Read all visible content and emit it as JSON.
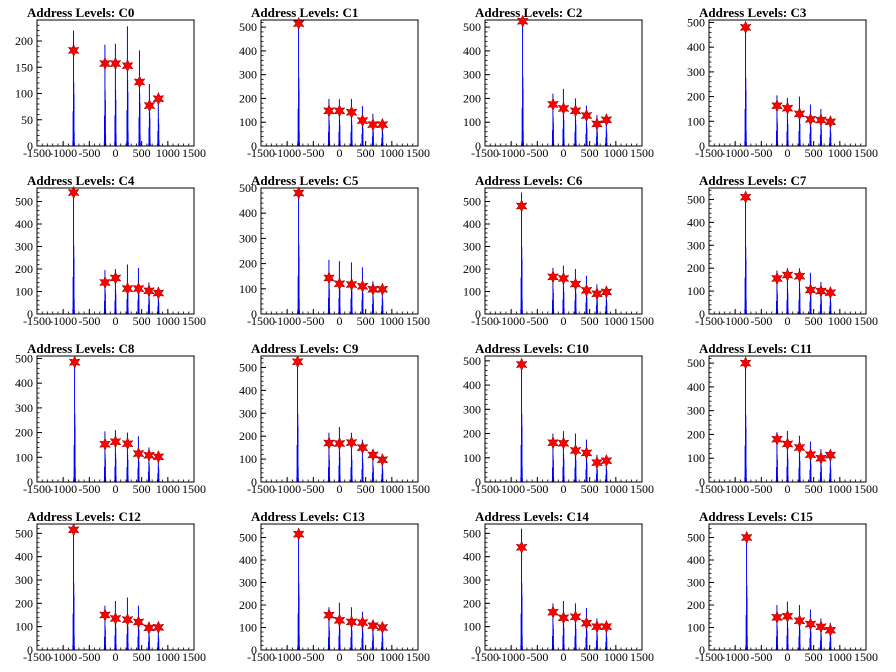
{
  "chart_data": [
    {
      "type": "histogram",
      "title": "Address Levels: C0",
      "xlim": [
        -1500,
        1500
      ],
      "ylim": [
        0,
        240
      ],
      "xticks": [
        -1500,
        -1000,
        -500,
        0,
        500,
        1000,
        1500
      ],
      "yticks": [
        0,
        50,
        100,
        150,
        200
      ],
      "peaks": [
        {
          "x": -800,
          "y": 220,
          "marker": 182
        },
        {
          "x": -200,
          "y": 193,
          "marker": 157
        },
        {
          "x": 0,
          "y": 195,
          "marker": 157
        },
        {
          "x": 230,
          "y": 228,
          "marker": 153
        },
        {
          "x": 460,
          "y": 182,
          "marker": 122
        },
        {
          "x": 650,
          "y": 118,
          "marker": 77
        },
        {
          "x": 820,
          "y": 95,
          "marker": 90
        }
      ]
    },
    {
      "type": "histogram",
      "title": "Address Levels: C1",
      "xlim": [
        -1500,
        1500
      ],
      "ylim": [
        0,
        530
      ],
      "xticks": [
        -1500,
        -1000,
        -500,
        0,
        500,
        1000,
        1500
      ],
      "yticks": [
        0,
        100,
        200,
        300,
        400,
        500
      ],
      "peaks": [
        {
          "x": -780,
          "y": 520,
          "marker": 515
        },
        {
          "x": -200,
          "y": 198,
          "marker": 148
        },
        {
          "x": 0,
          "y": 197,
          "marker": 148
        },
        {
          "x": 230,
          "y": 198,
          "marker": 142
        },
        {
          "x": 440,
          "y": 168,
          "marker": 107
        },
        {
          "x": 640,
          "y": 135,
          "marker": 90
        },
        {
          "x": 820,
          "y": 112,
          "marker": 90
        }
      ]
    },
    {
      "type": "histogram",
      "title": "Address Levels: C2",
      "xlim": [
        -1500,
        1500
      ],
      "ylim": [
        0,
        530
      ],
      "xticks": [
        -1500,
        -1000,
        -500,
        0,
        500,
        1000,
        1500
      ],
      "yticks": [
        0,
        100,
        200,
        300,
        400,
        500
      ],
      "peaks": [
        {
          "x": -780,
          "y": 530,
          "marker": 525
        },
        {
          "x": -200,
          "y": 220,
          "marker": 175
        },
        {
          "x": 0,
          "y": 240,
          "marker": 158
        },
        {
          "x": 230,
          "y": 200,
          "marker": 148
        },
        {
          "x": 440,
          "y": 170,
          "marker": 128
        },
        {
          "x": 640,
          "y": 130,
          "marker": 93
        },
        {
          "x": 820,
          "y": 122,
          "marker": 110
        }
      ]
    },
    {
      "type": "histogram",
      "title": "Address Levels: C3",
      "xlim": [
        -1500,
        1500
      ],
      "ylim": [
        0,
        510
      ],
      "xticks": [
        -1500,
        -1000,
        -500,
        0,
        500,
        1000,
        1500
      ],
      "yticks": [
        0,
        100,
        200,
        300,
        400,
        500
      ],
      "peaks": [
        {
          "x": -800,
          "y": 500,
          "marker": 480
        },
        {
          "x": -200,
          "y": 205,
          "marker": 163
        },
        {
          "x": 0,
          "y": 195,
          "marker": 153
        },
        {
          "x": 230,
          "y": 200,
          "marker": 130
        },
        {
          "x": 440,
          "y": 168,
          "marker": 108
        },
        {
          "x": 640,
          "y": 150,
          "marker": 105
        },
        {
          "x": 820,
          "y": 118,
          "marker": 98
        }
      ]
    },
    {
      "type": "histogram",
      "title": "Address Levels: C4",
      "xlim": [
        -1500,
        1500
      ],
      "ylim": [
        0,
        560
      ],
      "xticks": [
        -1500,
        -1000,
        -500,
        0,
        500,
        1000,
        1500
      ],
      "yticks": [
        0,
        100,
        200,
        300,
        400,
        500
      ],
      "peaks": [
        {
          "x": -800,
          "y": 550,
          "marker": 540
        },
        {
          "x": -200,
          "y": 195,
          "marker": 140
        },
        {
          "x": 0,
          "y": 200,
          "marker": 160
        },
        {
          "x": 230,
          "y": 220,
          "marker": 113
        },
        {
          "x": 440,
          "y": 205,
          "marker": 113
        },
        {
          "x": 640,
          "y": 140,
          "marker": 103
        },
        {
          "x": 820,
          "y": 112,
          "marker": 93
        }
      ]
    },
    {
      "type": "histogram",
      "title": "Address Levels: C5",
      "xlim": [
        -1500,
        1500
      ],
      "ylim": [
        0,
        500
      ],
      "xticks": [
        -1500,
        -1000,
        -500,
        0,
        500,
        1000,
        1500
      ],
      "yticks": [
        0,
        100,
        200,
        300,
        400,
        500
      ],
      "peaks": [
        {
          "x": -780,
          "y": 500,
          "marker": 480
        },
        {
          "x": -200,
          "y": 215,
          "marker": 143
        },
        {
          "x": 0,
          "y": 210,
          "marker": 120
        },
        {
          "x": 230,
          "y": 205,
          "marker": 117
        },
        {
          "x": 440,
          "y": 185,
          "marker": 110
        },
        {
          "x": 640,
          "y": 130,
          "marker": 98
        },
        {
          "x": 820,
          "y": 112,
          "marker": 98
        }
      ]
    },
    {
      "type": "histogram",
      "title": "Address Levels: C6",
      "xlim": [
        -1500,
        1500
      ],
      "ylim": [
        0,
        560
      ],
      "xticks": [
        -1500,
        -1000,
        -500,
        0,
        500,
        1000,
        1500
      ],
      "yticks": [
        0,
        100,
        200,
        300,
        400,
        500
      ],
      "peaks": [
        {
          "x": -800,
          "y": 540,
          "marker": 480
        },
        {
          "x": -200,
          "y": 205,
          "marker": 165
        },
        {
          "x": 0,
          "y": 215,
          "marker": 158
        },
        {
          "x": 230,
          "y": 200,
          "marker": 133
        },
        {
          "x": 440,
          "y": 170,
          "marker": 105
        },
        {
          "x": 640,
          "y": 132,
          "marker": 90
        },
        {
          "x": 820,
          "y": 115,
          "marker": 98
        }
      ]
    },
    {
      "type": "histogram",
      "title": "Address Levels: C7",
      "xlim": [
        -1500,
        1500
      ],
      "ylim": [
        0,
        550
      ],
      "xticks": [
        -1500,
        -1000,
        -500,
        0,
        500,
        1000,
        1500
      ],
      "yticks": [
        0,
        100,
        200,
        300,
        400,
        500
      ],
      "peaks": [
        {
          "x": -800,
          "y": 530,
          "marker": 510
        },
        {
          "x": -200,
          "y": 190,
          "marker": 155
        },
        {
          "x": 0,
          "y": 200,
          "marker": 170
        },
        {
          "x": 230,
          "y": 200,
          "marker": 165
        },
        {
          "x": 440,
          "y": 180,
          "marker": 105
        },
        {
          "x": 640,
          "y": 140,
          "marker": 100
        },
        {
          "x": 820,
          "y": 112,
          "marker": 93
        }
      ]
    },
    {
      "type": "histogram",
      "title": "Address Levels: C8",
      "xlim": [
        -1500,
        1500
      ],
      "ylim": [
        0,
        510
      ],
      "xticks": [
        -1500,
        -1000,
        -500,
        0,
        500,
        1000,
        1500
      ],
      "yticks": [
        0,
        100,
        200,
        300,
        400,
        500
      ],
      "peaks": [
        {
          "x": -780,
          "y": 500,
          "marker": 485
        },
        {
          "x": -200,
          "y": 205,
          "marker": 153
        },
        {
          "x": 0,
          "y": 210,
          "marker": 163
        },
        {
          "x": 230,
          "y": 200,
          "marker": 155
        },
        {
          "x": 440,
          "y": 185,
          "marker": 115
        },
        {
          "x": 640,
          "y": 140,
          "marker": 108
        },
        {
          "x": 820,
          "y": 118,
          "marker": 102
        }
      ]
    },
    {
      "type": "histogram",
      "title": "Address Levels: C9",
      "xlim": [
        -1500,
        1500
      ],
      "ylim": [
        0,
        550
      ],
      "xticks": [
        -1500,
        -1000,
        -500,
        0,
        500,
        1000,
        1500
      ],
      "yticks": [
        0,
        100,
        200,
        300,
        400,
        500
      ],
      "peaks": [
        {
          "x": -800,
          "y": 540,
          "marker": 525
        },
        {
          "x": -200,
          "y": 215,
          "marker": 170
        },
        {
          "x": 0,
          "y": 240,
          "marker": 168
        },
        {
          "x": 230,
          "y": 215,
          "marker": 172
        },
        {
          "x": 440,
          "y": 185,
          "marker": 150
        },
        {
          "x": 640,
          "y": 135,
          "marker": 118
        },
        {
          "x": 820,
          "y": 112,
          "marker": 97
        }
      ]
    },
    {
      "type": "histogram",
      "title": "Address Levels: C10",
      "xlim": [
        -1500,
        1500
      ],
      "ylim": [
        0,
        520
      ],
      "xticks": [
        -1500,
        -1000,
        -500,
        0,
        500,
        1000,
        1500
      ],
      "yticks": [
        0,
        100,
        200,
        300,
        400,
        500
      ],
      "peaks": [
        {
          "x": -800,
          "y": 510,
          "marker": 485
        },
        {
          "x": -200,
          "y": 200,
          "marker": 162
        },
        {
          "x": 0,
          "y": 210,
          "marker": 160
        },
        {
          "x": 230,
          "y": 200,
          "marker": 130
        },
        {
          "x": 440,
          "y": 175,
          "marker": 120
        },
        {
          "x": 640,
          "y": 112,
          "marker": 80
        },
        {
          "x": 820,
          "y": 100,
          "marker": 88
        }
      ]
    },
    {
      "type": "histogram",
      "title": "Address Levels: C11",
      "xlim": [
        -1500,
        1500
      ],
      "ylim": [
        0,
        530
      ],
      "xticks": [
        -1500,
        -1000,
        -500,
        0,
        500,
        1000,
        1500
      ],
      "yticks": [
        0,
        100,
        200,
        300,
        400,
        500
      ],
      "peaks": [
        {
          "x": -800,
          "y": 510,
          "marker": 500
        },
        {
          "x": -200,
          "y": 210,
          "marker": 180
        },
        {
          "x": 0,
          "y": 215,
          "marker": 160
        },
        {
          "x": 230,
          "y": 195,
          "marker": 145
        },
        {
          "x": 440,
          "y": 170,
          "marker": 115
        },
        {
          "x": 640,
          "y": 138,
          "marker": 100
        },
        {
          "x": 820,
          "y": 122,
          "marker": 113
        }
      ]
    },
    {
      "type": "histogram",
      "title": "Address Levels: C12",
      "xlim": [
        -1500,
        1500
      ],
      "ylim": [
        0,
        540
      ],
      "xticks": [
        -1500,
        -1000,
        -500,
        0,
        500,
        1000,
        1500
      ],
      "yticks": [
        0,
        100,
        200,
        300,
        400,
        500
      ],
      "peaks": [
        {
          "x": -800,
          "y": 520,
          "marker": 515
        },
        {
          "x": -200,
          "y": 190,
          "marker": 150
        },
        {
          "x": 0,
          "y": 210,
          "marker": 135
        },
        {
          "x": 230,
          "y": 225,
          "marker": 130
        },
        {
          "x": 440,
          "y": 190,
          "marker": 120
        },
        {
          "x": 640,
          "y": 118,
          "marker": 95
        },
        {
          "x": 820,
          "y": 108,
          "marker": 97
        }
      ]
    },
    {
      "type": "histogram",
      "title": "Address Levels: C13",
      "xlim": [
        -1500,
        1500
      ],
      "ylim": [
        0,
        560
      ],
      "xticks": [
        -1500,
        -1000,
        -500,
        0,
        500,
        1000,
        1500
      ],
      "yticks": [
        0,
        100,
        200,
        300,
        400,
        500
      ],
      "peaks": [
        {
          "x": -780,
          "y": 540,
          "marker": 515
        },
        {
          "x": -200,
          "y": 190,
          "marker": 155
        },
        {
          "x": 0,
          "y": 210,
          "marker": 132
        },
        {
          "x": 230,
          "y": 190,
          "marker": 125
        },
        {
          "x": 440,
          "y": 170,
          "marker": 122
        },
        {
          "x": 640,
          "y": 135,
          "marker": 108
        },
        {
          "x": 820,
          "y": 118,
          "marker": 100
        }
      ]
    },
    {
      "type": "histogram",
      "title": "Address Levels: C14",
      "xlim": [
        -1500,
        1500
      ],
      "ylim": [
        0,
        540
      ],
      "xticks": [
        -1500,
        -1000,
        -500,
        0,
        500,
        1000,
        1500
      ],
      "yticks": [
        0,
        100,
        200,
        300,
        400,
        500
      ],
      "peaks": [
        {
          "x": -800,
          "y": 520,
          "marker": 440
        },
        {
          "x": -200,
          "y": 200,
          "marker": 162
        },
        {
          "x": 0,
          "y": 210,
          "marker": 138
        },
        {
          "x": 230,
          "y": 200,
          "marker": 142
        },
        {
          "x": 440,
          "y": 180,
          "marker": 115
        },
        {
          "x": 640,
          "y": 135,
          "marker": 100
        },
        {
          "x": 820,
          "y": 115,
          "marker": 100
        }
      ]
    },
    {
      "type": "histogram",
      "title": "Address Levels: C15",
      "xlim": [
        -1500,
        1500
      ],
      "ylim": [
        0,
        560
      ],
      "xticks": [
        -1500,
        -1000,
        -500,
        0,
        500,
        1000,
        1500
      ],
      "yticks": [
        0,
        100,
        200,
        300,
        400,
        500
      ],
      "peaks": [
        {
          "x": -780,
          "y": 520,
          "marker": 500
        },
        {
          "x": -200,
          "y": 200,
          "marker": 145
        },
        {
          "x": 0,
          "y": 215,
          "marker": 150
        },
        {
          "x": 230,
          "y": 200,
          "marker": 130
        },
        {
          "x": 440,
          "y": 180,
          "marker": 115
        },
        {
          "x": 640,
          "y": 140,
          "marker": 103
        },
        {
          "x": 820,
          "y": 120,
          "marker": 88
        }
      ]
    }
  ],
  "colors": {
    "bars": "#0000ff",
    "marker": "#ff0000",
    "axis": "#000000"
  }
}
